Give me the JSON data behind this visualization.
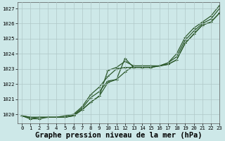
{
  "title": "Graphe pression niveau de la mer (hPa)",
  "background_color": "#cde8e8",
  "grid_color": "#b0c8c8",
  "line_color": "#2d5a2d",
  "xlim": [
    -0.5,
    23
  ],
  "ylim": [
    1019.4,
    1027.4
  ],
  "yticks": [
    1020,
    1021,
    1022,
    1023,
    1024,
    1025,
    1026,
    1027
  ],
  "xticks": [
    0,
    1,
    2,
    3,
    4,
    5,
    6,
    7,
    8,
    9,
    10,
    11,
    12,
    13,
    14,
    15,
    16,
    17,
    18,
    19,
    20,
    21,
    22,
    23
  ],
  "series": [
    [
      1019.9,
      1019.8,
      1019.8,
      1019.8,
      1019.8,
      1019.8,
      1019.9,
      1020.3,
      1020.8,
      1021.2,
      1022.9,
      1023.1,
      1023.5,
      1023.2,
      1023.2,
      1023.2,
      1023.2,
      1023.3,
      1023.6,
      1024.7,
      1025.3,
      1025.9,
      1026.1,
      1026.7
    ],
    [
      1019.9,
      1019.8,
      1019.8,
      1019.8,
      1019.8,
      1019.8,
      1019.9,
      1020.3,
      1020.8,
      1021.2,
      1022.1,
      1022.3,
      1022.8,
      1023.2,
      1023.2,
      1023.2,
      1023.2,
      1023.3,
      1023.6,
      1024.7,
      1025.3,
      1025.9,
      1026.1,
      1026.7
    ],
    [
      1019.9,
      1019.7,
      1019.7,
      1019.8,
      1019.8,
      1019.8,
      1019.95,
      1020.4,
      1021.1,
      1021.5,
      1022.2,
      1022.3,
      1023.7,
      1023.1,
      1023.1,
      1023.1,
      1023.2,
      1023.4,
      1023.8,
      1024.9,
      1025.5,
      1026.0,
      1026.3,
      1027.0
    ],
    [
      1019.9,
      1019.7,
      1019.8,
      1019.8,
      1019.8,
      1019.9,
      1020.0,
      1020.5,
      1021.3,
      1021.8,
      1022.5,
      1023.0,
      1023.1,
      1023.1,
      1023.1,
      1023.1,
      1023.2,
      1023.4,
      1024.0,
      1025.1,
      1025.7,
      1026.1,
      1026.5,
      1027.2
    ]
  ],
  "marker": "+",
  "markersize": 3.5,
  "linewidth": 0.9,
  "title_fontsize": 7.5,
  "tick_fontsize": 5.2,
  "xlabel_pad": 1
}
